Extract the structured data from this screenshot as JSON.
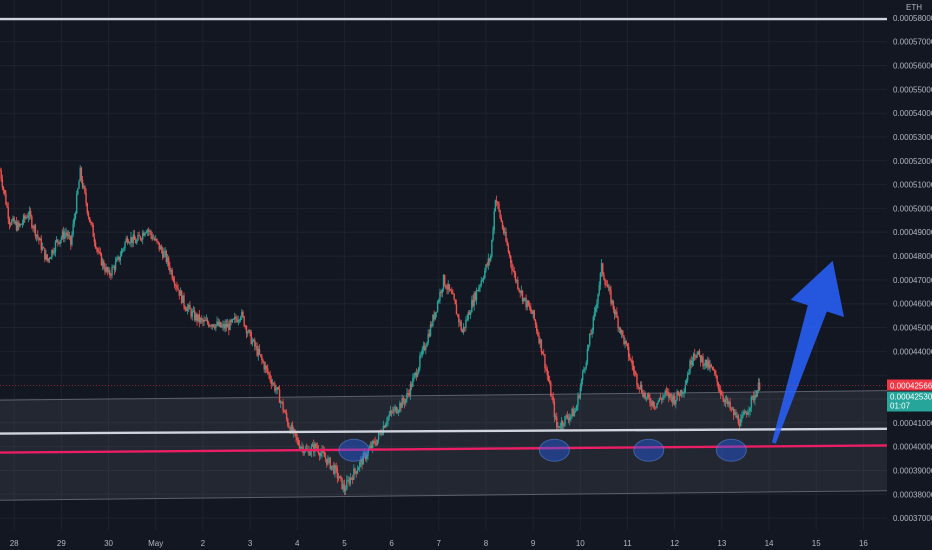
{
  "chart_data": {
    "type": "candlestick",
    "y_unit": "ETH",
    "ylim": [
      0.000365,
      0.0005875
    ],
    "y_ticks": [
      0.00037,
      0.00038,
      0.00039,
      0.0004,
      0.00041,
      0.00042,
      0.00043,
      0.00044,
      0.00045,
      0.00046,
      0.00047,
      0.00048,
      0.00049,
      0.0005,
      0.00051,
      0.00052,
      0.00053,
      0.00054,
      0.00055,
      0.00056,
      0.00057,
      0.00058
    ],
    "y_tick_labels": [
      "0.00037000",
      "0.00038000",
      "0.00039000",
      "0.00040000",
      "0.00041000",
      "",
      "",
      "0.00044000",
      "0.00045000",
      "0.00046000",
      "0.00047000",
      "0.00048000",
      "0.00049000",
      "0.00050000",
      "0.00051000",
      "0.00052000",
      "0.00053000",
      "0.00054000",
      "0.00055000",
      "0.00056000",
      "0.00057000",
      "0.00058000"
    ],
    "x_ticks": [
      {
        "label": "28",
        "day": 27.5
      },
      {
        "label": "29",
        "day": 28.5
      },
      {
        "label": "30",
        "day": 29.5
      },
      {
        "label": "May",
        "day": 30.5
      },
      {
        "label": "2",
        "day": 31.5
      },
      {
        "label": "3",
        "day": 32.5
      },
      {
        "label": "4",
        "day": 33.5
      },
      {
        "label": "5",
        "day": 34.5
      },
      {
        "label": "6",
        "day": 35.5
      },
      {
        "label": "7",
        "day": 36.5
      },
      {
        "label": "8",
        "day": 37.5
      },
      {
        "label": "9",
        "day": 38.5
      },
      {
        "label": "10",
        "day": 39.5
      },
      {
        "label": "11",
        "day": 40.5
      },
      {
        "label": "12",
        "day": 41.5
      },
      {
        "label": "13",
        "day": 42.5
      },
      {
        "label": "14",
        "day": 43.5
      },
      {
        "label": "15",
        "day": 44.5
      },
      {
        "label": "16",
        "day": 45.5
      }
    ],
    "x_range": [
      27.2,
      46.0
    ],
    "price_path": [
      [
        27.2,
        0.000516
      ],
      [
        27.4,
        0.000495
      ],
      [
        27.6,
        0.000492
      ],
      [
        27.8,
        0.000498
      ],
      [
        28.0,
        0.000488
      ],
      [
        28.2,
        0.000478
      ],
      [
        28.4,
        0.000486
      ],
      [
        28.6,
        0.00049
      ],
      [
        28.7,
        0.000485
      ],
      [
        28.9,
        0.000515
      ],
      [
        29.1,
        0.000495
      ],
      [
        29.3,
        0.00048
      ],
      [
        29.5,
        0.000472
      ],
      [
        29.7,
        0.000478
      ],
      [
        29.9,
        0.000488
      ],
      [
        30.1,
        0.000486
      ],
      [
        30.3,
        0.000492
      ],
      [
        30.5,
        0.000486
      ],
      [
        30.7,
        0.00048
      ],
      [
        30.9,
        0.00047
      ],
      [
        31.1,
        0.00046
      ],
      [
        31.3,
        0.000455
      ],
      [
        31.5,
        0.000452
      ],
      [
        31.7,
        0.000452
      ],
      [
        31.9,
        0.00045
      ],
      [
        32.1,
        0.000451
      ],
      [
        32.3,
        0.000456
      ],
      [
        32.5,
        0.000446
      ],
      [
        32.7,
        0.000438
      ],
      [
        32.9,
        0.00043
      ],
      [
        33.1,
        0.000422
      ],
      [
        33.3,
        0.00041
      ],
      [
        33.5,
        0.000402
      ],
      [
        33.7,
        0.000398
      ],
      [
        33.9,
        0.0004
      ],
      [
        34.1,
        0.000395
      ],
      [
        34.3,
        0.00039
      ],
      [
        34.5,
        0.000382
      ],
      [
        34.6,
        0.000386
      ],
      [
        34.8,
        0.000392
      ],
      [
        35.0,
        0.000398
      ],
      [
        35.2,
        0.000403
      ],
      [
        35.4,
        0.000412
      ],
      [
        35.6,
        0.000416
      ],
      [
        35.8,
        0.00042
      ],
      [
        36.0,
        0.00043
      ],
      [
        36.2,
        0.000442
      ],
      [
        36.4,
        0.000455
      ],
      [
        36.6,
        0.00047
      ],
      [
        36.8,
        0.000462
      ],
      [
        37.0,
        0.000448
      ],
      [
        37.2,
        0.00046
      ],
      [
        37.4,
        0.00047
      ],
      [
        37.6,
        0.00048
      ],
      [
        37.7,
        0.000505
      ],
      [
        37.9,
        0.000488
      ],
      [
        38.1,
        0.000472
      ],
      [
        38.3,
        0.000462
      ],
      [
        38.5,
        0.000455
      ],
      [
        38.7,
        0.00044
      ],
      [
        38.9,
        0.00042
      ],
      [
        39.0,
        0.000408
      ],
      [
        39.2,
        0.000412
      ],
      [
        39.4,
        0.000415
      ],
      [
        39.6,
        0.000435
      ],
      [
        39.8,
        0.000455
      ],
      [
        39.95,
        0.000475
      ],
      [
        40.1,
        0.000465
      ],
      [
        40.3,
        0.000452
      ],
      [
        40.5,
        0.00044
      ],
      [
        40.7,
        0.000428
      ],
      [
        40.9,
        0.00042
      ],
      [
        41.1,
        0.000418
      ],
      [
        41.3,
        0.000422
      ],
      [
        41.5,
        0.00042
      ],
      [
        41.7,
        0.000425
      ],
      [
        41.9,
        0.00044
      ],
      [
        42.1,
        0.000436
      ],
      [
        42.3,
        0.000432
      ],
      [
        42.5,
        0.000422
      ],
      [
        42.7,
        0.000415
      ],
      [
        42.9,
        0.00041
      ],
      [
        43.1,
        0.000418
      ],
      [
        43.3,
        0.000426
      ]
    ],
    "lines": [
      {
        "name": "top-line",
        "y_start": 0.0005795,
        "y_end": 0.0005795,
        "color": "#d1d4dc"
      },
      {
        "name": "white-support-line",
        "y_start": 0.0004055,
        "y_end": 0.0004075,
        "color": "#d1d4dc"
      },
      {
        "name": "red-support-line",
        "y_start": 0.0003975,
        "y_end": 0.0004005,
        "color": "#e91e63"
      }
    ],
    "channel": {
      "top_start": 0.0004195,
      "top_end": 0.0004235,
      "bottom_start": 0.0003775,
      "bottom_end": 0.0003815
    },
    "markers": [
      {
        "day": 34.7,
        "value": 0.0003985
      },
      {
        "day": 38.95,
        "value": 0.0003985
      },
      {
        "day": 40.95,
        "value": 0.0003985
      },
      {
        "day": 42.7,
        "value": 0.0003985
      }
    ],
    "arrow": {
      "from_day": 43.6,
      "from_value": 0.0004015,
      "to_day": 44.85,
      "to_value": 0.000478,
      "color": "#2962ff"
    },
    "badge_red": {
      "label": "0.00042566",
      "value": 0.00042566,
      "color": "#f23645"
    },
    "badge_green": {
      "label": "0.00042530",
      "sub": "01:07",
      "value": 0.0004253,
      "color": "#26a69a"
    },
    "colors": {
      "up": "#26a69a",
      "down": "#ef5350",
      "background": "#131722",
      "grid": "#1e222d",
      "channel_fill": "#787b86"
    }
  }
}
